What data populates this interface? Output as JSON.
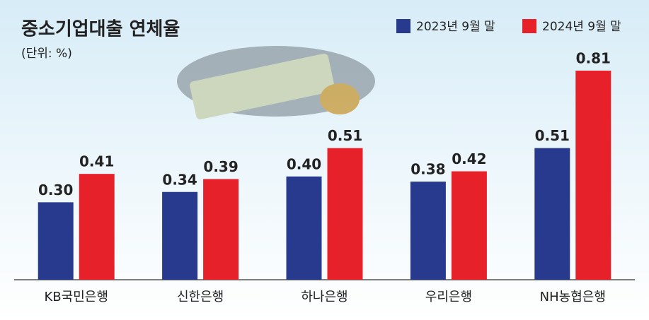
{
  "chart_data": {
    "type": "bar",
    "title": "중소기업대출 연체율",
    "subtitle": "(단위: %)",
    "categories": [
      "KB국민은행",
      "신한은행",
      "하나은행",
      "우리은행",
      "NH농협은행"
    ],
    "series": [
      {
        "name": "2023년 9월 말",
        "color": "#283a8e",
        "values": [
          0.3,
          0.34,
          0.4,
          0.38,
          0.51
        ],
        "value_labels": [
          "0.30",
          "0.34",
          "0.40",
          "0.38",
          "0.51"
        ]
      },
      {
        "name": "2024년 9월 말",
        "color": "#e62129",
        "values": [
          0.41,
          0.39,
          0.51,
          0.42,
          0.81
        ],
        "value_labels": [
          "0.41",
          "0.39",
          "0.51",
          "0.42",
          "0.81"
        ]
      }
    ],
    "legend": "top-right"
  }
}
